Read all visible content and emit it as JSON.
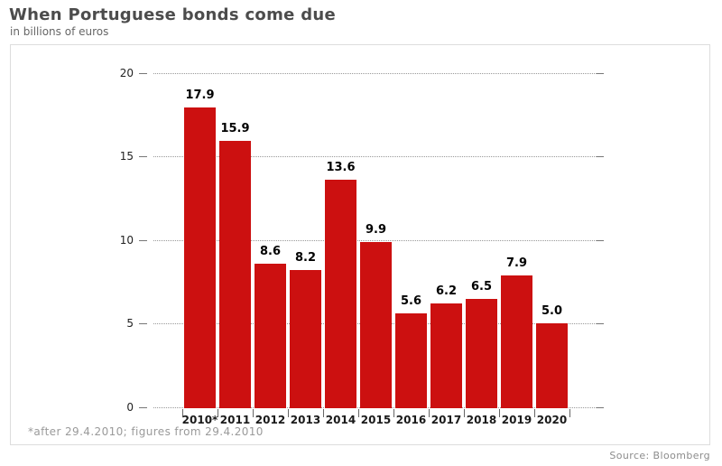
{
  "header": {
    "title": "When Portuguese bonds come due",
    "subtitle": "in billions of euros"
  },
  "footer": {
    "footnote": "*after 29.4.2010; figures from 29.4.2010",
    "source": "Source: Bloomberg"
  },
  "colors": {
    "bar": "#cc1010",
    "grid_dots": "#999999",
    "tick": "#777777",
    "x_tick": "#666666",
    "title": "#4c4c4c",
    "muted": "#9a9a9a",
    "panel_border": "#dddddd"
  },
  "chart_data": {
    "type": "bar",
    "title": "When Portuguese bonds come due",
    "subtitle": "in billions of euros",
    "categories": [
      "2010*",
      "2011",
      "2012",
      "2013",
      "2014",
      "2015",
      "2016",
      "2017",
      "2018",
      "2019",
      "2020"
    ],
    "values": [
      17.9,
      15.9,
      8.6,
      8.2,
      13.6,
      9.9,
      5.6,
      6.2,
      6.5,
      7.9,
      5.0
    ],
    "value_labels": [
      "17.9",
      "15.9",
      "8.6",
      "8.2",
      "13.6",
      "9.9",
      "5.6",
      "6.2",
      "6.5",
      "7.9",
      "5.0"
    ],
    "xlabel": "",
    "ylabel": "",
    "ylim": [
      0,
      20
    ],
    "yticks": [
      0,
      5,
      10,
      15,
      20
    ],
    "grid": "horizontal-dotted",
    "legend": "none",
    "bar_color": "#cc1010",
    "footnote": "*after 29.4.2010; figures from 29.4.2010",
    "source": "Source: Bloomberg"
  }
}
